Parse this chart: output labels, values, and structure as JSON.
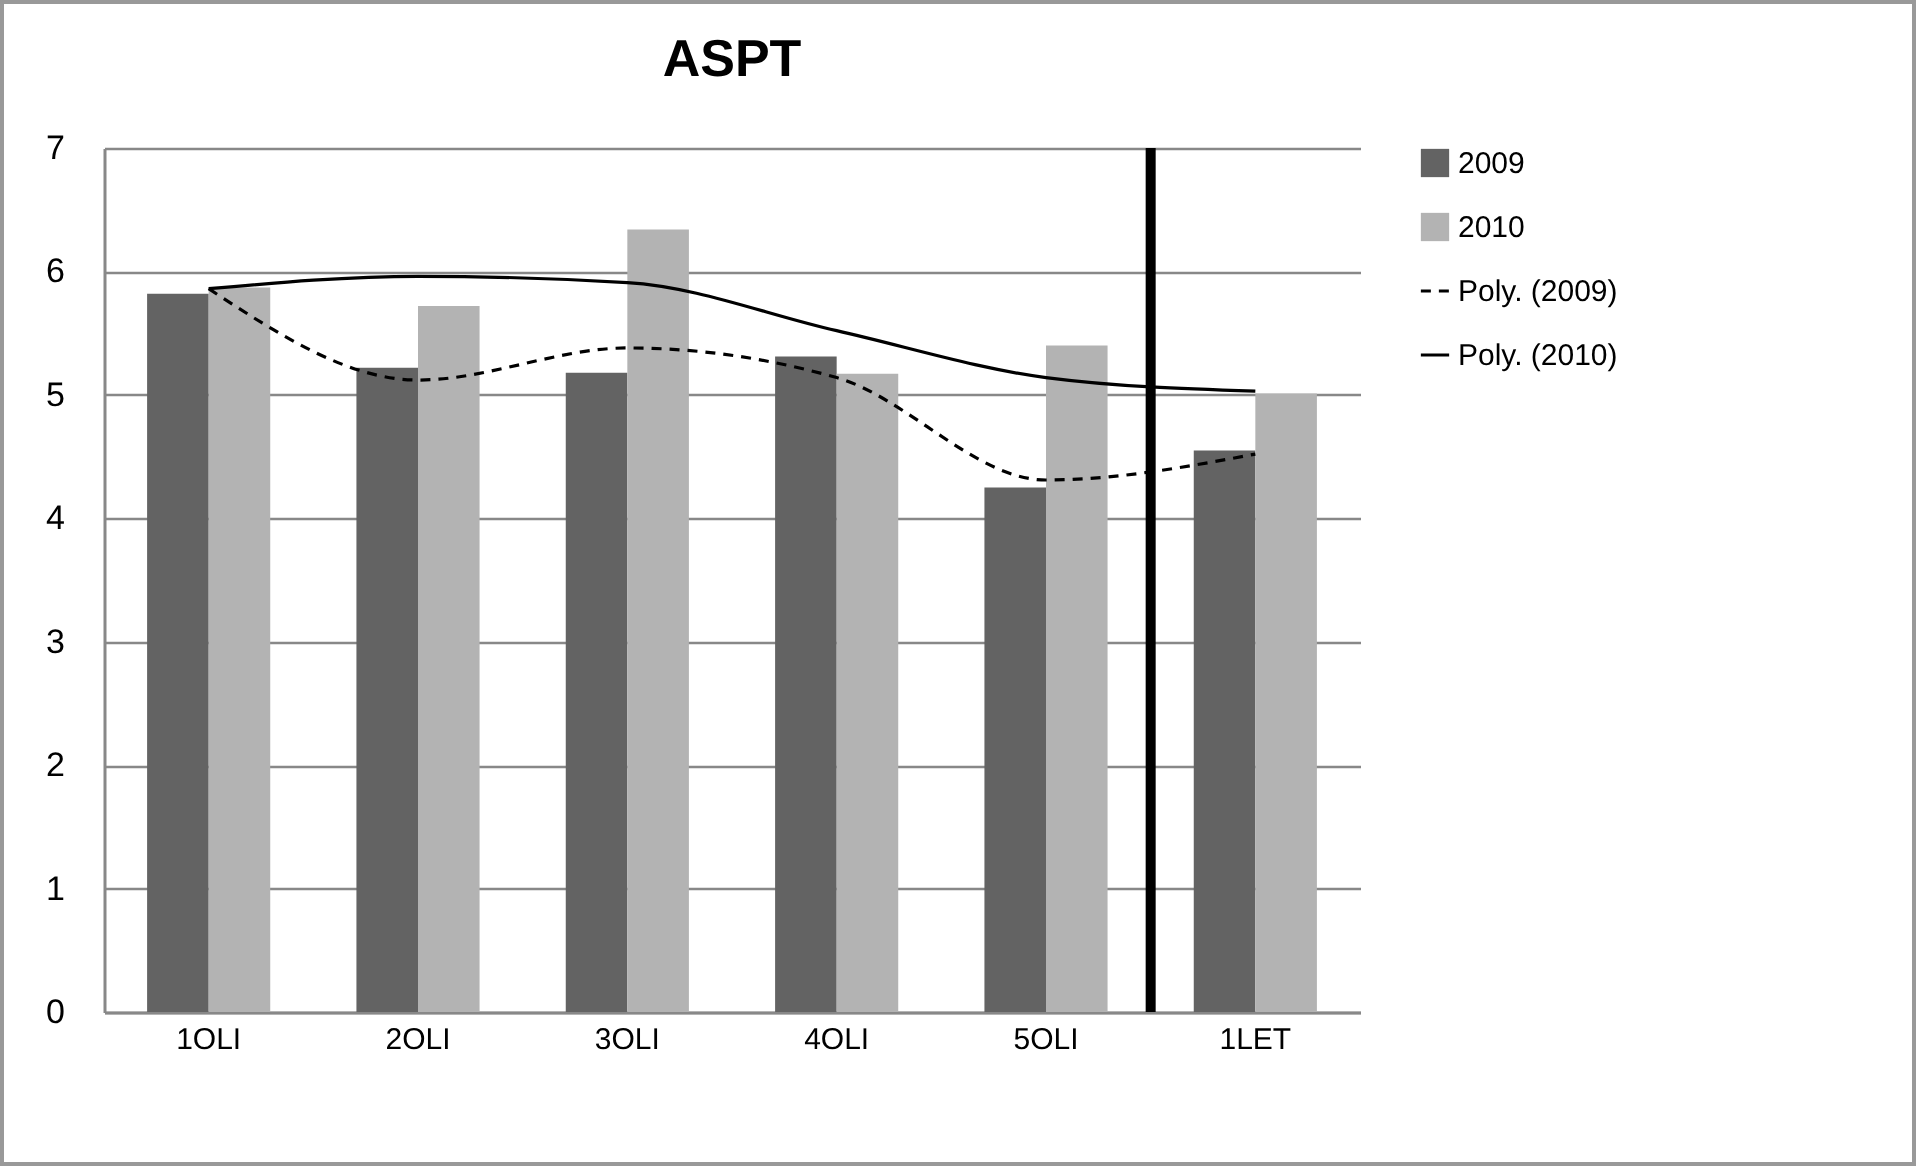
{
  "chart_data": {
    "type": "bar",
    "title": "ASPT",
    "categories": [
      "1OLI",
      "2OLI",
      "3OLI",
      "4OLI",
      "5OLI",
      "1LET"
    ],
    "series": [
      {
        "name": "2009",
        "color": "#636363",
        "values": [
          5.82,
          5.22,
          5.18,
          5.31,
          4.25,
          4.55
        ]
      },
      {
        "name": "2010",
        "color": "#b3b3b3",
        "values": [
          5.87,
          5.72,
          6.34,
          5.17,
          5.4,
          5.01
        ]
      },
      {
        "name": "Poly. (2009)",
        "type": "line",
        "color": "#000000",
        "line_style": "dashed",
        "values": [
          5.86,
          5.12,
          5.38,
          5.14,
          4.31,
          4.52
        ]
      },
      {
        "name": "Poly. (2010)",
        "type": "line",
        "color": "#000000",
        "line_style": "solid",
        "values": [
          5.86,
          5.96,
          5.91,
          5.52,
          5.14,
          5.03
        ]
      }
    ],
    "ylim": [
      0,
      7
    ],
    "yticks": [
      0,
      1,
      2,
      3,
      4,
      5,
      6,
      7
    ],
    "grid": "y",
    "legend": "right",
    "ref_lines": [
      {
        "axis": "x",
        "value": "1LET",
        "color": "#000000"
      }
    ]
  }
}
